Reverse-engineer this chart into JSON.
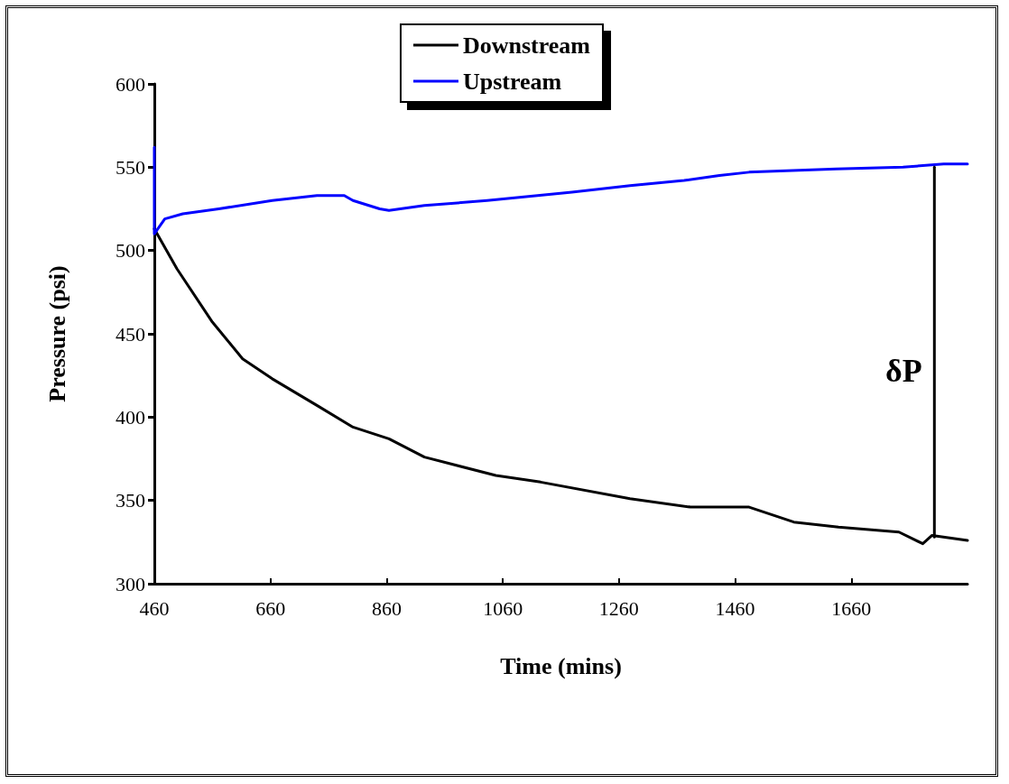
{
  "chart_data": {
    "type": "line",
    "xlabel": "Time (mins)",
    "ylabel": "Pressure (psi)",
    "xlim": [
      460,
      1860
    ],
    "xticks": [
      460,
      660,
      860,
      1060,
      1260,
      1460,
      1660
    ],
    "ylim": [
      300,
      600
    ],
    "yticks": [
      300,
      350,
      400,
      450,
      500,
      550,
      600
    ],
    "grid": false,
    "legend": "top",
    "marker": "none",
    "line_style": "solid",
    "annotations": [
      "δP"
    ],
    "series": [
      {
        "name": "Downstream",
        "color": "#000000",
        "x": [
          460,
          499,
          560,
          612,
          663,
          740,
          802,
          864,
          925,
          1048,
          1125,
          1279,
          1383,
          1484,
          1561,
          1638,
          1742,
          1783,
          1799,
          1860
        ],
        "values": [
          513,
          489,
          457,
          435,
          423,
          407,
          394,
          387,
          376,
          365,
          361,
          351,
          346,
          346,
          337,
          334,
          331,
          324,
          329,
          326
        ]
      },
      {
        "name": "Upstream",
        "color": "#0000ff",
        "x": [
          460,
          460,
          478,
          509,
          571,
          663,
          740,
          787,
          802,
          848,
          864,
          925,
          1033,
          1179,
          1279,
          1372,
          1433,
          1484,
          1634,
          1749,
          1819,
          1860
        ],
        "values": [
          562,
          510,
          519,
          522,
          525,
          530,
          533,
          533,
          530,
          525,
          524,
          527,
          530,
          535,
          539,
          542,
          545,
          547,
          549,
          550,
          552,
          552
        ]
      },
      {
        "color": "#000000",
        "x": [
          1803,
          1803
        ],
        "values": [
          328,
          550
        ]
      }
    ]
  }
}
